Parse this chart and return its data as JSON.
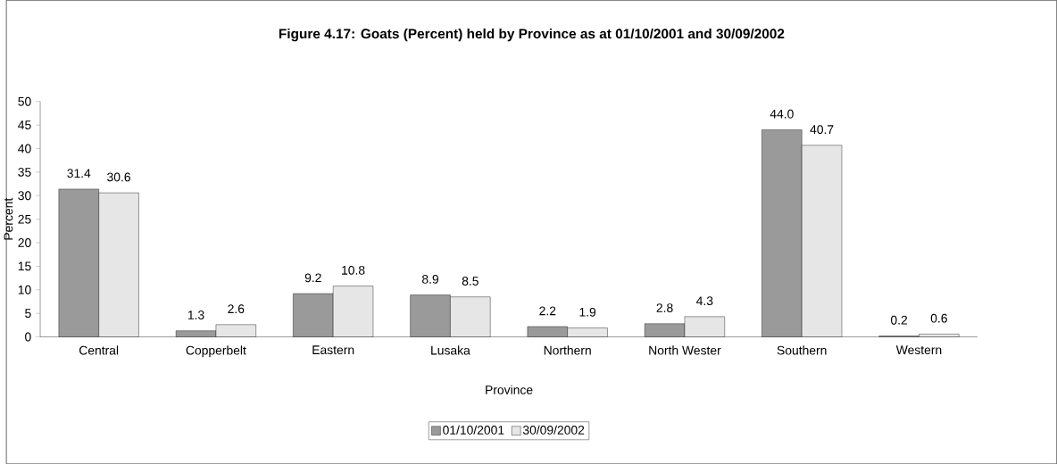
{
  "chart_data": {
    "type": "bar",
    "title": "Figure 4.17: Goats (Percent) held by Province as at 01/10/2001 and 30/09/2002",
    "xlabel": "Province",
    "ylabel": "Percent",
    "categories": [
      "Central",
      "Copperbelt",
      "Eastern",
      "Lusaka",
      "Northern",
      "North Wester",
      "Southern",
      "Western"
    ],
    "series": [
      {
        "name": "01/10/2001",
        "color": "#9a9a9a",
        "values": [
          31.4,
          1.3,
          9.2,
          8.9,
          2.2,
          2.8,
          44.0,
          0.2
        ],
        "value_labels": [
          "31.4",
          "1.3",
          "9.2",
          "8.9",
          "2.2",
          "2.8",
          "44.0",
          "0.2"
        ]
      },
      {
        "name": "30/09/2002",
        "color": "#e6e6e6",
        "values": [
          30.6,
          2.6,
          10.8,
          8.5,
          1.9,
          4.3,
          40.7,
          0.6
        ],
        "value_labels": [
          "30.6",
          "2.6",
          "10.8",
          "8.5",
          "1.9",
          "4.3",
          "40.7",
          "0.6"
        ]
      }
    ],
    "ylim": [
      0,
      50
    ],
    "yticks": [
      0,
      5,
      10,
      15,
      20,
      25,
      30,
      35,
      40,
      45,
      50
    ],
    "legend": "bottom",
    "grid": false
  }
}
